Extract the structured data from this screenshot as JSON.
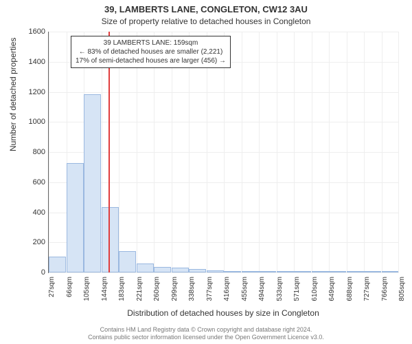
{
  "titles": {
    "line1": "39, LAMBERTS LANE, CONGLETON, CW12 3AU",
    "line2": "Size of property relative to detached houses in Congleton"
  },
  "chart": {
    "type": "histogram",
    "xlabel": "Distribution of detached houses by size in Congleton",
    "ylabel": "Number of detached properties",
    "background_color": "#ffffff",
    "grid_color": "#eeeeee",
    "axis_color": "#666666",
    "bar_fill": "#d6e4f5",
    "bar_stroke": "#9ab8e0",
    "refline_color": "#e03c3c",
    "ylim": [
      0,
      1600
    ],
    "yticks": [
      0,
      200,
      400,
      600,
      800,
      1000,
      1200,
      1400,
      1600
    ],
    "xticks": [
      "27sqm",
      "66sqm",
      "105sqm",
      "144sqm",
      "183sqm",
      "221sqm",
      "260sqm",
      "299sqm",
      "338sqm",
      "377sqm",
      "416sqm",
      "455sqm",
      "494sqm",
      "533sqm",
      "571sqm",
      "610sqm",
      "649sqm",
      "688sqm",
      "727sqm",
      "766sqm",
      "805sqm"
    ],
    "bars": [
      105,
      725,
      1185,
      435,
      140,
      60,
      35,
      30,
      22,
      15,
      10,
      5,
      5,
      3,
      3,
      2,
      2,
      2,
      2,
      2
    ],
    "reference_value": 159,
    "x_min": 27,
    "x_max": 805,
    "annotation": {
      "line1": "39 LAMBERTS LANE: 159sqm",
      "line2": "← 83% of detached houses are smaller (2,221)",
      "line3": "17% of semi-detached houses are larger (456) →"
    }
  },
  "footer": {
    "line1": "Contains HM Land Registry data © Crown copyright and database right 2024.",
    "line2": "Contains public sector information licensed under the Open Government Licence v3.0."
  },
  "style": {
    "title_fontsize": 13,
    "subtitle_fontsize": 12,
    "label_fontsize": 12,
    "tick_fontsize": 11,
    "anno_fontsize": 10,
    "footer_fontsize": 9
  }
}
